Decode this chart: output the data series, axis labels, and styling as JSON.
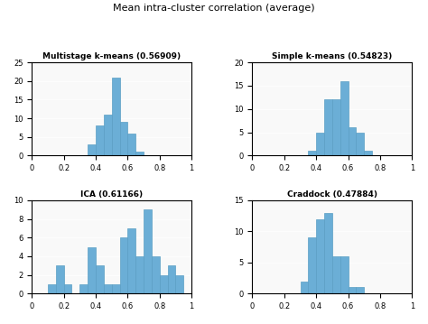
{
  "title": "Mean intra-cluster correlation (average)",
  "bar_color": "#6baed6",
  "bar_edge_color": "#5a9ec4",
  "subplots": [
    {
      "title": "Multistage k-means (0.56909)",
      "ylim": [
        0,
        25
      ],
      "yticks": [
        0,
        5,
        10,
        15,
        20,
        25
      ],
      "xlim": [
        0,
        1
      ],
      "xticks": [
        0,
        0.2,
        0.4,
        0.6,
        0.8,
        1.0
      ],
      "bin_edges": [
        0.35,
        0.4,
        0.45,
        0.5,
        0.55,
        0.6,
        0.65,
        0.7,
        0.75
      ],
      "counts": [
        3,
        8,
        11,
        21,
        9,
        6,
        1,
        0
      ]
    },
    {
      "title": "Simple k-means (0.54823)",
      "ylim": [
        0,
        20
      ],
      "yticks": [
        0,
        5,
        10,
        15,
        20
      ],
      "xlim": [
        0,
        1
      ],
      "xticks": [
        0,
        0.2,
        0.4,
        0.6,
        0.8,
        1.0
      ],
      "bin_edges": [
        0.35,
        0.4,
        0.45,
        0.5,
        0.55,
        0.6,
        0.65,
        0.7,
        0.75
      ],
      "counts": [
        1,
        5,
        12,
        12,
        16,
        6,
        5,
        1
      ]
    },
    {
      "title": "ICA (0.61166)",
      "ylim": [
        0,
        10
      ],
      "yticks": [
        0,
        2,
        4,
        6,
        8,
        10
      ],
      "xlim": [
        0,
        1
      ],
      "xticks": [
        0,
        0.2,
        0.4,
        0.6,
        0.8,
        1.0
      ],
      "bin_edges": [
        0.1,
        0.15,
        0.2,
        0.25,
        0.3,
        0.35,
        0.4,
        0.45,
        0.5,
        0.55,
        0.6,
        0.65,
        0.7,
        0.75,
        0.8,
        0.85,
        0.9,
        0.95,
        1.0
      ],
      "counts": [
        1,
        3,
        1,
        0,
        1,
        5,
        3,
        1,
        1,
        6,
        7,
        4,
        9,
        4,
        2,
        3,
        2,
        0
      ]
    },
    {
      "title": "Craddock (0.47884)",
      "ylim": [
        0,
        15
      ],
      "yticks": [
        0,
        5,
        10,
        15
      ],
      "xlim": [
        0,
        1
      ],
      "xticks": [
        0,
        0.2,
        0.4,
        0.6,
        0.8,
        1.0
      ],
      "bin_edges": [
        0.3,
        0.35,
        0.4,
        0.45,
        0.5,
        0.55,
        0.6,
        0.65,
        0.7,
        0.75
      ],
      "counts": [
        2,
        9,
        12,
        13,
        6,
        6,
        1,
        1,
        0
      ]
    }
  ]
}
